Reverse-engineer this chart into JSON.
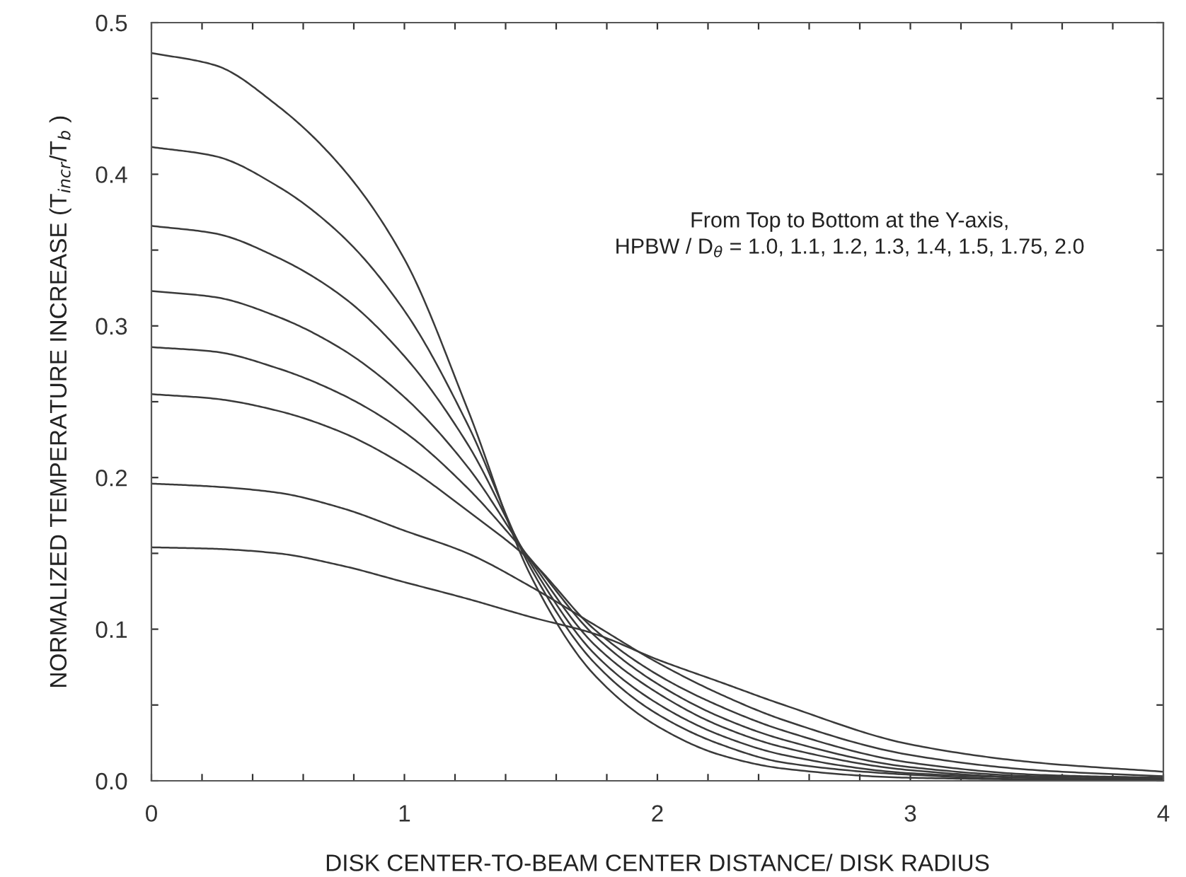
{
  "chart_data": {
    "type": "line",
    "xlabel": "DISK CENTER-TO-BEAM CENTER DISTANCE/ DISK RADIUS",
    "ylabel": "NORMALIZED TEMPERATURE INCREASE (T$_{incr}$/T$_{b}$ )",
    "annotations": [
      "From Top to Bottom at the Y-axis,\nHPBW / D$_{θ}$ = 1.0, 1.1, 1.2, 1.3, 1.4, 1.5, 1.75, 2.0"
    ],
    "x": [
      0,
      0.25,
      0.5,
      0.75,
      1,
      1.25,
      1.5,
      1.75,
      2,
      2.25,
      2.5,
      3,
      3.5,
      4
    ],
    "series": [
      {
        "color": "#3a3a3a",
        "values": [
          0.48,
          0.472,
          0.445,
          0.405,
          0.344,
          0.245,
          0.135,
          0.07,
          0.036,
          0.017,
          0.008,
          0.002,
          0.001,
          0.001
        ]
      },
      {
        "color": "#3a3a3a",
        "values": [
          0.418,
          0.412,
          0.392,
          0.36,
          0.31,
          0.235,
          0.14,
          0.078,
          0.044,
          0.024,
          0.012,
          0.004,
          0.001,
          0.001
        ]
      },
      {
        "color": "#3a3a3a",
        "values": [
          0.366,
          0.361,
          0.345,
          0.32,
          0.28,
          0.222,
          0.143,
          0.084,
          0.051,
          0.03,
          0.017,
          0.005,
          0.002,
          0.001
        ]
      },
      {
        "color": "#3a3a3a",
        "values": [
          0.323,
          0.319,
          0.306,
          0.285,
          0.253,
          0.207,
          0.145,
          0.09,
          0.058,
          0.036,
          0.022,
          0.007,
          0.002,
          0.001
        ]
      },
      {
        "color": "#3a3a3a",
        "values": [
          0.286,
          0.283,
          0.272,
          0.255,
          0.23,
          0.193,
          0.146,
          0.096,
          0.064,
          0.042,
          0.027,
          0.009,
          0.003,
          0.002
        ]
      },
      {
        "color": "#3a3a3a",
        "values": [
          0.255,
          0.252,
          0.244,
          0.23,
          0.208,
          0.178,
          0.145,
          0.1,
          0.07,
          0.049,
          0.033,
          0.012,
          0.004,
          0.002
        ]
      },
      {
        "color": "#3a3a3a",
        "values": [
          0.196,
          0.194,
          0.19,
          0.18,
          0.165,
          0.15,
          0.128,
          0.103,
          0.078,
          0.057,
          0.04,
          0.017,
          0.007,
          0.003
        ]
      },
      {
        "color": "#3a3a3a",
        "values": [
          0.154,
          0.153,
          0.15,
          0.142,
          0.131,
          0.12,
          0.108,
          0.097,
          0.08,
          0.065,
          0.05,
          0.024,
          0.012,
          0.006
        ]
      }
    ],
    "xlim": [
      0,
      4
    ],
    "ylim": [
      0,
      0.5
    ],
    "xticks": [
      {
        "value": 0,
        "label": "0"
      },
      {
        "value": 0.2,
        "label": null
      },
      {
        "value": 0.4,
        "label": null
      },
      {
        "value": 0.6,
        "label": null
      },
      {
        "value": 0.8,
        "label": null
      },
      {
        "value": 1,
        "label": "1"
      },
      {
        "value": 1.2,
        "label": null
      },
      {
        "value": 1.4,
        "label": null
      },
      {
        "value": 1.6,
        "label": null
      },
      {
        "value": 1.8,
        "label": null
      },
      {
        "value": 2,
        "label": "2"
      },
      {
        "value": 2.2,
        "label": null
      },
      {
        "value": 2.4,
        "label": null
      },
      {
        "value": 2.6,
        "label": null
      },
      {
        "value": 2.8,
        "label": null
      },
      {
        "value": 3,
        "label": "3"
      },
      {
        "value": 3.2,
        "label": null
      },
      {
        "value": 3.4,
        "label": null
      },
      {
        "value": 3.6,
        "label": null
      },
      {
        "value": 3.8,
        "label": null
      },
      {
        "value": 4,
        "label": "4"
      }
    ],
    "yticks": [
      {
        "value": 0,
        "label": "0.0"
      },
      {
        "value": 0.05,
        "label": null
      },
      {
        "value": 0.1,
        "label": "0.1"
      },
      {
        "value": 0.15,
        "label": null
      },
      {
        "value": 0.2,
        "label": "0.2"
      },
      {
        "value": 0.25,
        "label": null
      },
      {
        "value": 0.3,
        "label": "0.3"
      },
      {
        "value": 0.35,
        "label": null
      },
      {
        "value": 0.4,
        "label": "0.4"
      },
      {
        "value": 0.45,
        "label": null
      },
      {
        "value": 0.5,
        "label": "0.5"
      }
    ],
    "grid": false,
    "legend": false,
    "marker": "none",
    "line_style": "solid"
  }
}
